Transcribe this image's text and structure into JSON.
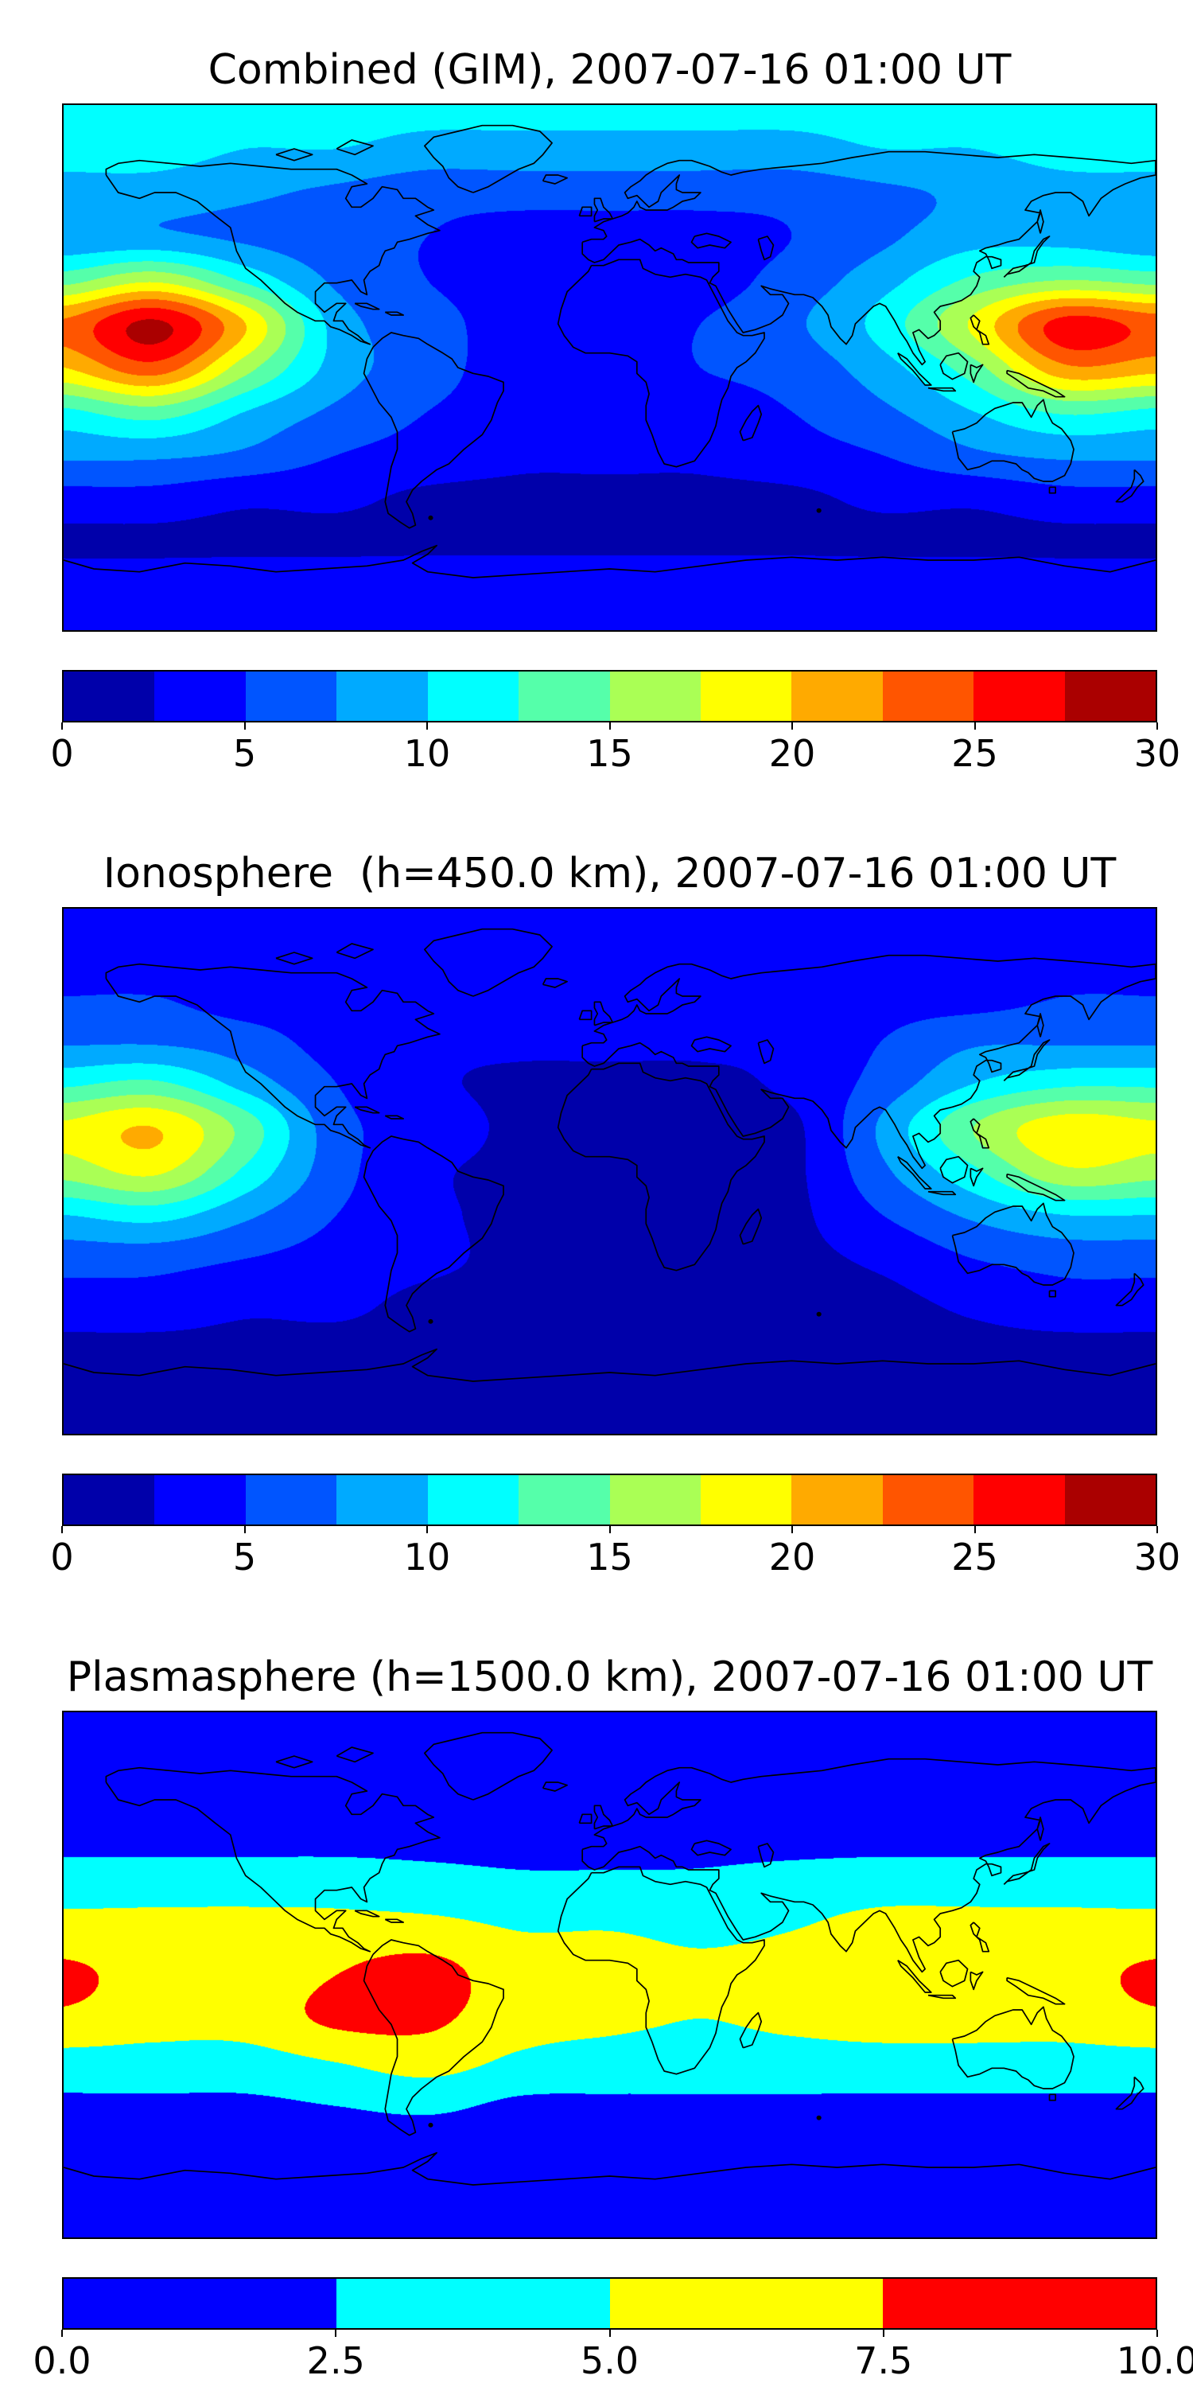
{
  "figure": {
    "background": "#ffffff",
    "colormap": "jet",
    "coastline_color": "#000000"
  },
  "chart_data": [
    {
      "type": "heatmap",
      "title": "Combined (GIM), 2007-07-16 01:00 UT",
      "projection": "equirectangular world map with coastlines",
      "colormap": "jet",
      "levels": {
        "min": 0,
        "max": 30,
        "n": 12
      },
      "colorbar_tick_values": [
        0,
        5,
        10,
        15,
        20,
        25,
        30
      ],
      "colorbar_tick_labels": [
        "0",
        "5",
        "10",
        "15",
        "20",
        "25",
        "30"
      ],
      "lon": [
        -180,
        -150,
        -120,
        -90,
        -60,
        -30,
        0,
        30,
        60,
        90,
        120,
        150,
        180
      ],
      "lat": [
        90,
        75,
        60,
        45,
        30,
        15,
        0,
        -15,
        -30,
        -45,
        -60,
        -75,
        -90
      ],
      "values": [
        [
          11,
          11,
          11,
          11,
          11,
          11,
          11,
          11,
          11,
          11,
          11,
          11,
          11
        ],
        [
          11,
          11,
          10,
          10,
          9,
          9,
          9,
          9,
          9,
          10,
          10,
          11,
          11
        ],
        [
          9,
          9,
          8,
          7,
          6,
          6,
          6,
          6,
          6,
          7,
          8,
          9,
          9
        ],
        [
          8,
          8,
          7,
          6,
          5,
          4,
          4,
          4,
          5,
          7,
          9,
          9,
          8
        ],
        [
          14,
          17,
          12,
          7,
          5,
          4,
          4,
          4,
          6,
          9,
          13,
          15,
          14
        ],
        [
          23,
          28,
          20,
          9,
          6,
          4,
          4,
          5,
          7,
          11,
          18,
          26,
          24
        ],
        [
          20,
          24,
          16,
          9,
          6,
          4,
          4,
          5,
          6,
          9,
          14,
          22,
          21
        ],
        [
          12,
          14,
          10,
          7,
          5,
          4,
          4,
          4,
          5,
          7,
          10,
          13,
          12
        ],
        [
          8,
          8,
          7,
          5,
          4,
          3,
          3,
          3,
          4,
          5,
          7,
          8,
          8
        ],
        [
          4,
          4,
          3,
          3,
          2,
          2,
          2,
          2,
          2,
          3,
          3,
          4,
          4
        ],
        [
          2,
          2,
          2,
          2,
          2,
          2,
          2,
          2,
          2,
          2,
          2,
          2,
          2
        ],
        [
          4,
          4,
          4,
          4,
          4,
          4,
          4,
          4,
          4,
          4,
          4,
          4,
          4
        ],
        [
          4,
          4,
          4,
          4,
          4,
          4,
          4,
          4,
          4,
          4,
          4,
          4,
          4
        ]
      ]
    },
    {
      "type": "heatmap",
      "title": "Ionosphere  (h=450.0 km), 2007-07-16 01:00 UT",
      "projection": "equirectangular world map with coastlines",
      "colormap": "jet",
      "levels": {
        "min": 0,
        "max": 30,
        "n": 12
      },
      "colorbar_tick_values": [
        0,
        5,
        10,
        15,
        20,
        25,
        30
      ],
      "colorbar_tick_labels": [
        "0",
        "5",
        "10",
        "15",
        "20",
        "25",
        "30"
      ],
      "lon": [
        -180,
        -150,
        -120,
        -90,
        -60,
        -30,
        0,
        30,
        60,
        90,
        120,
        150,
        180
      ],
      "lat": [
        90,
        75,
        60,
        45,
        30,
        15,
        0,
        -15,
        -30,
        -45,
        -60,
        -75,
        -90
      ],
      "values": [
        [
          4,
          4,
          4,
          4,
          4,
          4,
          4,
          4,
          4,
          4,
          4,
          4,
          4
        ],
        [
          4,
          4,
          4,
          4,
          3.5,
          3.5,
          3.5,
          3.5,
          3.5,
          4,
          4,
          4,
          4
        ],
        [
          5,
          5,
          4,
          4,
          3,
          3,
          3,
          3,
          3,
          4,
          4,
          5,
          5
        ],
        [
          7,
          7,
          6,
          4,
          3,
          3,
          3,
          3,
          3,
          5,
          7,
          7,
          7
        ],
        [
          12,
          13,
          9,
          5,
          3,
          2,
          2,
          2,
          3,
          6,
          10,
          12,
          12
        ],
        [
          18,
          20,
          14,
          6,
          4,
          2,
          2,
          2,
          2,
          8,
          15,
          19,
          18
        ],
        [
          16,
          18,
          12,
          6,
          3,
          2,
          2,
          2,
          2,
          7,
          12,
          17,
          16
        ],
        [
          10,
          11,
          8,
          5,
          3,
          2,
          2,
          2,
          2,
          5,
          8,
          10,
          10
        ],
        [
          6,
          6,
          5,
          4,
          3,
          2,
          2,
          2,
          2,
          3,
          5,
          6,
          6
        ],
        [
          4,
          4,
          3,
          3,
          2,
          2,
          2,
          2,
          2,
          2,
          3,
          4,
          4
        ],
        [
          2,
          2,
          2,
          2,
          2,
          2,
          2,
          2,
          2,
          2,
          2,
          2,
          2
        ],
        [
          2,
          2,
          2,
          2,
          2,
          2,
          2,
          2,
          2,
          2,
          2,
          2,
          2
        ],
        [
          2,
          2,
          2,
          2,
          2,
          2,
          2,
          2,
          2,
          2,
          2,
          2,
          2
        ]
      ]
    },
    {
      "type": "heatmap",
      "title": "Plasmasphere (h=1500.0 km), 2007-07-16 01:00 UT",
      "projection": "equirectangular world map with coastlines",
      "colormap": "jet",
      "levels": {
        "min": 0,
        "max": 10,
        "n": 4
      },
      "colorbar_tick_values": [
        0,
        2.5,
        5,
        7.5,
        10
      ],
      "colorbar_tick_labels": [
        "0.0",
        "2.5",
        "5.0",
        "7.5",
        "10.0"
      ],
      "lon": [
        -180,
        -150,
        -120,
        -90,
        -60,
        -30,
        0,
        30,
        60,
        90,
        120,
        150,
        180
      ],
      "lat": [
        90,
        75,
        60,
        45,
        30,
        15,
        0,
        -15,
        -30,
        -45,
        -60,
        -75,
        -90
      ],
      "values": [
        [
          1,
          1,
          1,
          1,
          1,
          1,
          1,
          1,
          1,
          1,
          1,
          1,
          1
        ],
        [
          1,
          1,
          1,
          1,
          1,
          1,
          1,
          1,
          1,
          1,
          1,
          1,
          1
        ],
        [
          1.5,
          1.5,
          1.5,
          1.5,
          1.5,
          1.5,
          1.5,
          1.5,
          1.5,
          1.5,
          1.5,
          1.5,
          1.5
        ],
        [
          2,
          2,
          2,
          2,
          2,
          2,
          2,
          2,
          2,
          2,
          2,
          2,
          2
        ],
        [
          4,
          4,
          4,
          4,
          3.5,
          3,
          3,
          3,
          3.5,
          4,
          4,
          4,
          4
        ],
        [
          6,
          6,
          6,
          6,
          6,
          5,
          5,
          4.5,
          5,
          6,
          6,
          6,
          6
        ],
        [
          8,
          6.5,
          6,
          7.5,
          8.5,
          6,
          6,
          5.5,
          6,
          6,
          6,
          6.5,
          8
        ],
        [
          7,
          6,
          6,
          8,
          8,
          6,
          5.5,
          5,
          5.5,
          6,
          6,
          6,
          7
        ],
        [
          4,
          4,
          4,
          5,
          6,
          4.5,
          4,
          4,
          4,
          4,
          4,
          4,
          4
        ],
        [
          2,
          2,
          2,
          2.5,
          3,
          2,
          2,
          2,
          2,
          2,
          2,
          2,
          2
        ],
        [
          1,
          1,
          1,
          1,
          1,
          1,
          1,
          1,
          1,
          1,
          1,
          1,
          1
        ],
        [
          1,
          1,
          1,
          1,
          1,
          1,
          1,
          1,
          1,
          1,
          1,
          1,
          1
        ],
        [
          1,
          1,
          1,
          1,
          1,
          1,
          1,
          1,
          1,
          1,
          1,
          1,
          1
        ]
      ]
    }
  ]
}
